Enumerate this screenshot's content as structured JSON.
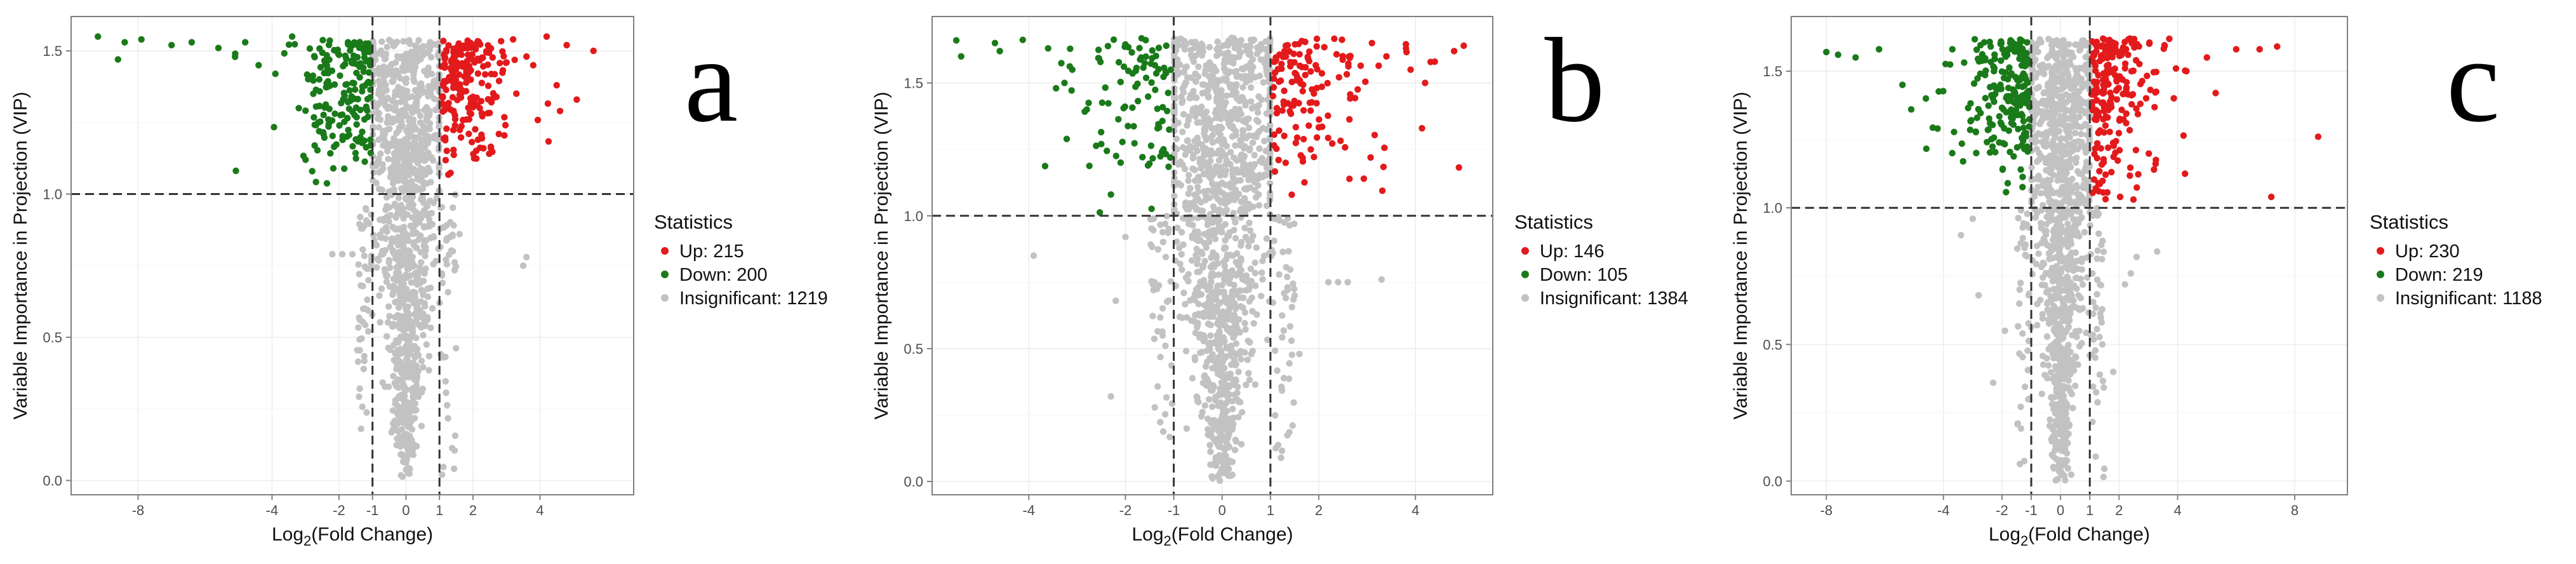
{
  "colors": {
    "up": "#e31a1c",
    "down": "#1a7a1a",
    "insig": "#c2c2c2",
    "grid": "#ececec",
    "frame": "#7f7f7f",
    "threshold": "#333333"
  },
  "chart_data": [
    {
      "type": "scatter",
      "panel_letter": "a",
      "xlabel": "Log2(Fold Change)",
      "ylabel": "Variable Importance in Projection (VIP)",
      "xlim": [
        -10.0,
        6.8
      ],
      "ylim": [
        -0.05,
        1.62
      ],
      "xticks": [
        -8,
        -4,
        -2,
        -1,
        0,
        1,
        2,
        4
      ],
      "yticks": [
        0.0,
        0.5,
        1.0,
        1.5
      ],
      "ytick_labels": [
        "0.0",
        "0.5",
        "1.0",
        "1.5"
      ],
      "vip_threshold": 1.0,
      "fc_thresholds": [
        -1,
        1
      ],
      "legend": {
        "title": "Statistics",
        "entries": [
          "Up: 215",
          "Down: 200",
          "Insignificant: 1219"
        ],
        "position": "right"
      },
      "counts": {
        "up": 215,
        "down": 200,
        "insignificant": 1219
      },
      "outliers": {
        "up": [
          [
            4.2,
            1.55
          ],
          [
            4.8,
            1.52
          ],
          [
            5.6,
            1.5
          ],
          [
            4.5,
            1.38
          ],
          [
            5.1,
            1.33
          ],
          [
            3.8,
            1.45
          ],
          [
            4.6,
            1.29
          ],
          [
            3.2,
            1.54
          ],
          [
            3.6,
            1.48
          ]
        ],
        "down": [
          [
            -9.2,
            1.55
          ],
          [
            -8.4,
            1.53
          ],
          [
            -7.9,
            1.54
          ],
          [
            -7.0,
            1.52
          ],
          [
            -8.6,
            1.47
          ],
          [
            -6.4,
            1.53
          ],
          [
            -5.6,
            1.51
          ],
          [
            -5.1,
            1.49
          ],
          [
            -4.4,
            1.45
          ],
          [
            -3.9,
            1.42
          ],
          [
            -4.8,
            1.53
          ],
          [
            -3.4,
            1.55
          ],
          [
            -3.0,
            1.12
          ],
          [
            -2.8,
            1.08
          ],
          [
            -3.2,
            1.3
          ]
        ],
        "insig": [
          [
            -2.2,
            0.79
          ],
          [
            -1.9,
            0.79
          ],
          [
            -1.6,
            0.79
          ],
          [
            3.5,
            0.75
          ],
          [
            3.6,
            0.78
          ],
          [
            -1.3,
            0.88
          ],
          [
            1.6,
            0.86
          ],
          [
            1.4,
            0.8
          ],
          [
            -1.2,
            0.95
          ]
        ]
      }
    },
    {
      "type": "scatter",
      "panel_letter": "b",
      "xlabel": "Log2(Fold Change)",
      "ylabel": "Variable Importance in Projection (VIP)",
      "xlim": [
        -6.0,
        5.6
      ],
      "ylim": [
        -0.05,
        1.75
      ],
      "xticks": [
        -4,
        -2,
        -1,
        0,
        1,
        2,
        4
      ],
      "yticks": [
        0.0,
        0.5,
        1.0,
        1.5
      ],
      "ytick_labels": [
        "0.0",
        "0.5",
        "1.0",
        "1.5"
      ],
      "vip_threshold": 1.0,
      "fc_thresholds": [
        -1,
        1
      ],
      "legend": {
        "title": "Statistics",
        "entries": [
          "Up: 146",
          "Down: 105",
          "Insignificant: 1384"
        ],
        "position": "right"
      },
      "counts": {
        "up": 146,
        "down": 105,
        "insignificant": 1384
      },
      "outliers": {
        "up": [
          [
            4.4,
            1.58
          ],
          [
            4.8,
            1.62
          ],
          [
            5.0,
            1.64
          ],
          [
            4.2,
            1.5
          ],
          [
            3.9,
            1.55
          ],
          [
            3.4,
            1.6
          ],
          [
            3.1,
            1.65
          ]
        ],
        "down": [
          [
            -5.5,
            1.66
          ],
          [
            -5.4,
            1.6
          ],
          [
            -4.7,
            1.65
          ],
          [
            -4.6,
            1.62
          ],
          [
            -3.6,
            1.63
          ],
          [
            -3.1,
            1.55
          ],
          [
            -2.8,
            1.4
          ],
          [
            -2.5,
            1.27
          ],
          [
            -2.3,
            1.08
          ],
          [
            -2.1,
            1.2
          ]
        ],
        "insig": [
          [
            -3.9,
            0.85
          ],
          [
            -2.2,
            0.68
          ],
          [
            -2.3,
            0.32
          ],
          [
            -2.0,
            0.92
          ],
          [
            2.2,
            0.75
          ],
          [
            2.4,
            0.75
          ],
          [
            2.6,
            0.75
          ],
          [
            3.3,
            0.76
          ],
          [
            1.6,
            0.48
          ],
          [
            1.5,
            0.7
          ],
          [
            -1.4,
            0.75
          ]
        ]
      }
    },
    {
      "type": "scatter",
      "panel_letter": "c",
      "xlabel": "Log2(Fold Change)",
      "ylabel": "Variable Importance in Projection (VIP)",
      "xlim": [
        -9.2,
        9.8
      ],
      "ylim": [
        -0.05,
        1.7
      ],
      "xticks": [
        -8,
        -4,
        -2,
        -1,
        0,
        1,
        2,
        4,
        8
      ],
      "yticks": [
        0.0,
        0.5,
        1.0,
        1.5
      ],
      "ytick_labels": [
        "0.0",
        "0.5",
        "1.0",
        "1.5"
      ],
      "vip_threshold": 1.0,
      "fc_thresholds": [
        -1,
        1
      ],
      "legend": {
        "title": "Statistics",
        "entries": [
          "Up: 230",
          "Down: 219",
          "Insignificant: 1188"
        ],
        "position": "right"
      },
      "counts": {
        "up": 230,
        "down": 219,
        "insignificant": 1188
      },
      "outliers": {
        "up": [
          [
            8.8,
            1.26
          ],
          [
            7.2,
            1.04
          ],
          [
            6.0,
            1.58
          ],
          [
            7.4,
            1.59
          ],
          [
            5.3,
            1.42
          ],
          [
            5.0,
            1.55
          ],
          [
            4.3,
            1.5
          ],
          [
            6.8,
            1.58
          ]
        ],
        "down": [
          [
            -8.0,
            1.57
          ],
          [
            -7.6,
            1.56
          ],
          [
            -7.0,
            1.55
          ],
          [
            -6.2,
            1.58
          ],
          [
            -5.4,
            1.45
          ],
          [
            -5.1,
            1.36
          ],
          [
            -4.6,
            1.4
          ],
          [
            -4.2,
            1.29
          ],
          [
            -3.7,
            1.2
          ]
        ],
        "insig": [
          [
            -3.4,
            0.9
          ],
          [
            -2.8,
            0.68
          ],
          [
            3.3,
            0.84
          ],
          [
            2.4,
            0.76
          ],
          [
            2.2,
            0.72
          ],
          [
            1.8,
            0.4
          ],
          [
            2.6,
            0.82
          ],
          [
            -2.3,
            0.36
          ],
          [
            -1.9,
            0.55
          ],
          [
            -3.0,
            0.96
          ]
        ]
      }
    }
  ]
}
